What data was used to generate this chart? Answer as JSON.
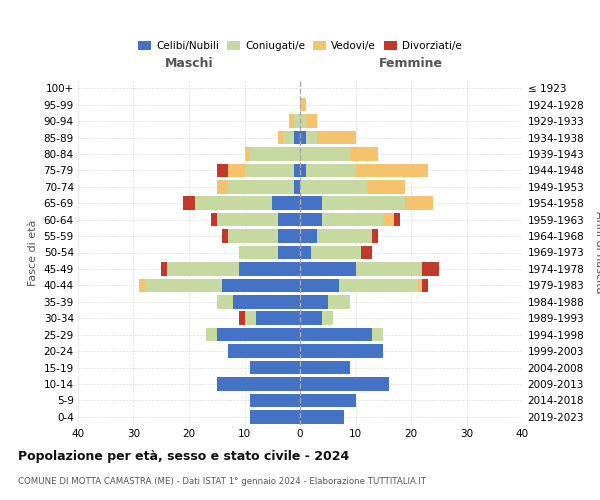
{
  "age_groups": [
    "100+",
    "95-99",
    "90-94",
    "85-89",
    "80-84",
    "75-79",
    "70-74",
    "65-69",
    "60-64",
    "55-59",
    "50-54",
    "45-49",
    "40-44",
    "35-39",
    "30-34",
    "25-29",
    "20-24",
    "15-19",
    "10-14",
    "5-9",
    "0-4"
  ],
  "birth_years": [
    "≤ 1923",
    "1924-1928",
    "1929-1933",
    "1934-1938",
    "1939-1943",
    "1944-1948",
    "1949-1953",
    "1954-1958",
    "1959-1963",
    "1964-1968",
    "1969-1973",
    "1974-1978",
    "1979-1983",
    "1984-1988",
    "1989-1993",
    "1994-1998",
    "1999-2003",
    "2004-2008",
    "2009-2013",
    "2014-2018",
    "2019-2023"
  ],
  "maschi": {
    "celibi": [
      0,
      0,
      0,
      1,
      0,
      1,
      1,
      5,
      4,
      4,
      4,
      11,
      14,
      12,
      8,
      15,
      13,
      9,
      15,
      9,
      9
    ],
    "coniugati": [
      0,
      0,
      1,
      2,
      9,
      9,
      12,
      14,
      11,
      9,
      7,
      13,
      14,
      3,
      2,
      2,
      0,
      0,
      0,
      0,
      0
    ],
    "vedovi": [
      0,
      0,
      1,
      1,
      1,
      3,
      2,
      0,
      0,
      0,
      0,
      0,
      1,
      0,
      0,
      0,
      0,
      0,
      0,
      0,
      0
    ],
    "divorziati": [
      0,
      0,
      0,
      0,
      0,
      2,
      0,
      2,
      1,
      1,
      0,
      1,
      0,
      0,
      1,
      0,
      0,
      0,
      0,
      0,
      0
    ]
  },
  "femmine": {
    "nubili": [
      0,
      0,
      0,
      1,
      0,
      1,
      0,
      4,
      4,
      3,
      2,
      10,
      7,
      5,
      4,
      13,
      15,
      9,
      16,
      10,
      8
    ],
    "coniugate": [
      0,
      0,
      1,
      2,
      9,
      9,
      12,
      15,
      11,
      10,
      9,
      12,
      14,
      4,
      2,
      2,
      0,
      0,
      0,
      0,
      0
    ],
    "vedove": [
      0,
      1,
      2,
      7,
      5,
      13,
      7,
      5,
      2,
      0,
      0,
      0,
      1,
      0,
      0,
      0,
      0,
      0,
      0,
      0,
      0
    ],
    "divorziate": [
      0,
      0,
      0,
      0,
      0,
      0,
      0,
      0,
      1,
      1,
      2,
      3,
      1,
      0,
      0,
      0,
      0,
      0,
      0,
      0,
      0
    ]
  },
  "colors": {
    "celibi": "#4472c4",
    "coniugati": "#c5d9a0",
    "vedovi": "#f5c26e",
    "divorziati": "#c0392b"
  },
  "title": "Popolazione per età, sesso e stato civile - 2024",
  "subtitle": "COMUNE DI MOTTA CAMASTRA (ME) - Dati ISTAT 1° gennaio 2024 - Elaborazione TUTTITALIA.IT",
  "ylabel_left": "Fasce di età",
  "ylabel_right": "Anni di nascita",
  "xlabel_left": "Maschi",
  "xlabel_right": "Femmine",
  "xlim": 40,
  "background_color": "#ffffff",
  "grid_color": "#dddddd"
}
